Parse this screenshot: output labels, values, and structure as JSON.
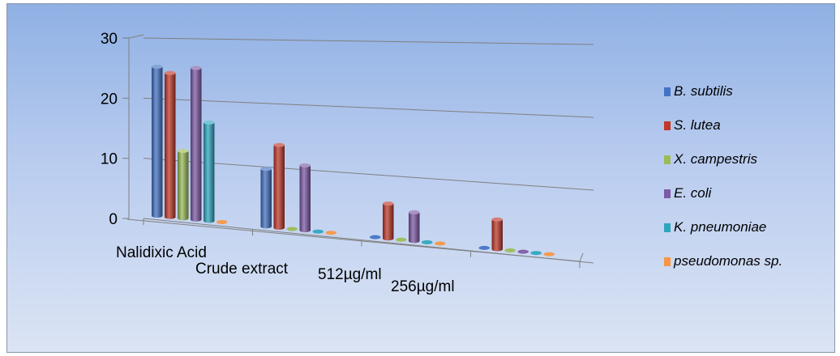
{
  "chart_data": {
    "type": "bar",
    "style": "3d-clustered-cylinder",
    "categories": [
      "Nalidixic Acid",
      "Crude extract",
      "512µg/ml",
      "256µg/ml"
    ],
    "y_ticks": [
      "0",
      "10",
      "20",
      "30"
    ],
    "ylim": [
      0,
      30
    ],
    "grid": true,
    "legend_position": "right",
    "series": [
      {
        "name": "B. subtilis",
        "color": "#4472c4",
        "values": [
          26,
          10,
          0,
          0
        ]
      },
      {
        "name": "S. lutea",
        "color": "#c0392b",
        "values": [
          25,
          14,
          6,
          5
        ]
      },
      {
        "name": "X. campestris",
        "color": "#9bbb59",
        "values": [
          12,
          0,
          0,
          0
        ]
      },
      {
        "name": "E. coli",
        "color": "#7d5aa6",
        "values": [
          26,
          11,
          5,
          0
        ]
      },
      {
        "name": "K. pneumoniae",
        "color": "#2fa6bf",
        "values": [
          17,
          0,
          0,
          0
        ]
      },
      {
        "name": "pseudomonas sp.",
        "color": "#f79646",
        "values": [
          0,
          0,
          0,
          0
        ]
      }
    ]
  }
}
